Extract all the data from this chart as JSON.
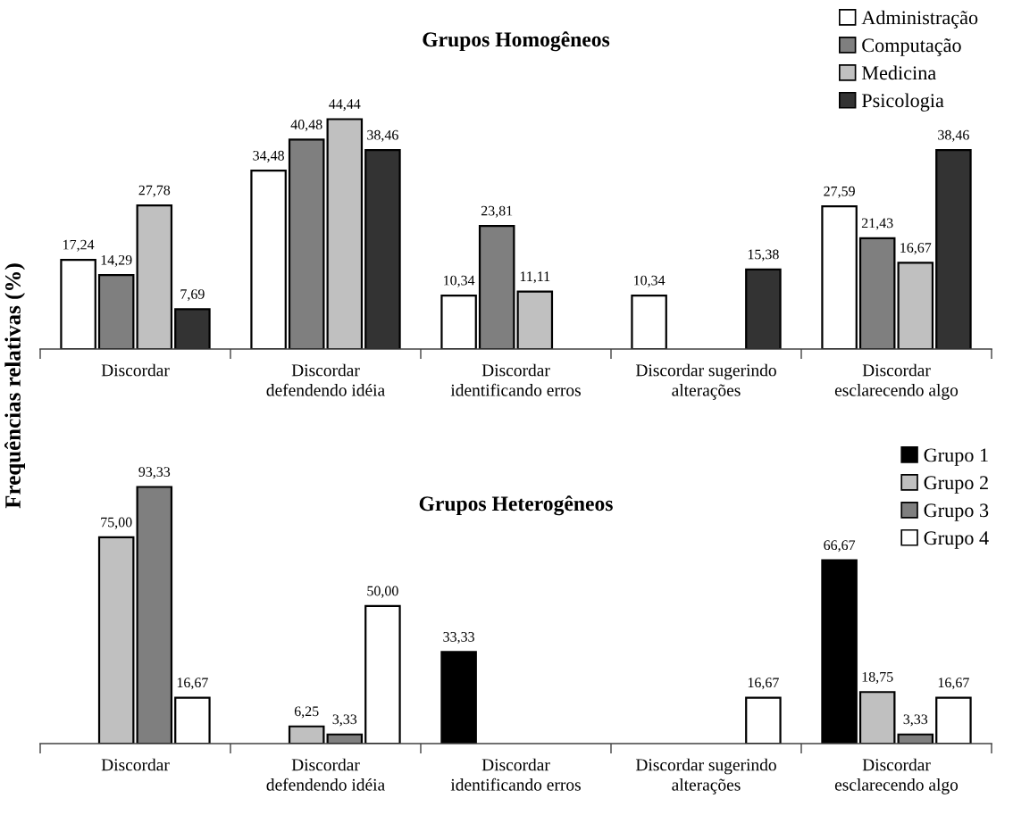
{
  "chart_data": [
    {
      "type": "bar",
      "title": "Grupos Homogêneos",
      "ylabel": "Frequências relativas (%)",
      "tick_labels": "x",
      "legend": "top right",
      "categories": [
        "Discordar",
        "Discordar\ndefendendo idéia",
        "Discordar\nidentificando erros",
        "Discordar sugerindo\nalterações",
        "Discordar\nesclarecendo algo"
      ],
      "series": [
        {
          "name": "Administração",
          "color": "#ffffff",
          "values": [
            17.24,
            34.48,
            10.34,
            10.34,
            27.59
          ],
          "value_labels": [
            "17,24",
            "34,48",
            "10,34",
            "10,34",
            "27,59"
          ]
        },
        {
          "name": "Computação",
          "color": "#7f7f7f",
          "values": [
            14.29,
            40.48,
            23.81,
            null,
            21.43
          ],
          "value_labels": [
            "14,29",
            "40,48",
            "23,81",
            null,
            "21,43"
          ]
        },
        {
          "name": "Medicina",
          "color": "#c0c0c0",
          "values": [
            27.78,
            44.44,
            11.11,
            null,
            16.67
          ],
          "value_labels": [
            "27,78",
            "44,44",
            "11,11",
            null,
            "16,67"
          ]
        },
        {
          "name": "Psicologia",
          "color": "#333333",
          "values": [
            7.69,
            38.46,
            null,
            15.38,
            38.46
          ],
          "value_labels": [
            "7,69",
            "38,46",
            null,
            "15,38",
            "38,46"
          ]
        }
      ]
    },
    {
      "type": "bar",
      "title": "Grupos Heterogêneos",
      "tick_labels": "x",
      "legend": "top right",
      "categories": [
        "Discordar",
        "Discordar\ndefendendo idéia",
        "Discordar\nidentificando erros",
        "Discordar sugerindo\nalterações",
        "Discordar\nesclarecendo algo"
      ],
      "series": [
        {
          "name": "Grupo 1",
          "color": "#000000",
          "values": [
            null,
            null,
            33.33,
            null,
            66.67
          ],
          "value_labels": [
            null,
            null,
            "33,33",
            null,
            "66,67"
          ]
        },
        {
          "name": "Grupo 2",
          "color": "#c0c0c0",
          "values": [
            75.0,
            6.25,
            null,
            null,
            18.75
          ],
          "value_labels": [
            "75,00",
            "6,25",
            null,
            null,
            "18,75"
          ]
        },
        {
          "name": "Grupo 3",
          "color": "#7f7f7f",
          "values": [
            93.33,
            3.33,
            null,
            null,
            3.33
          ],
          "value_labels": [
            "93,33",
            "3,33",
            null,
            null,
            "3,33"
          ]
        },
        {
          "name": "Grupo 4",
          "color": "#ffffff",
          "values": [
            16.67,
            50.0,
            null,
            16.67,
            16.67
          ],
          "value_labels": [
            "16,67",
            "50,00",
            null,
            "16,67",
            "16,67"
          ]
        }
      ]
    }
  ]
}
